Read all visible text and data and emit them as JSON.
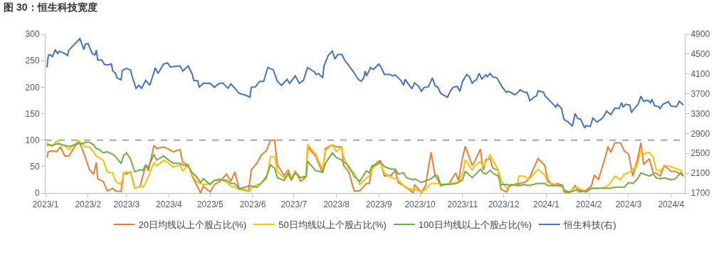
{
  "chart_data": {
    "type": "line",
    "title": "图 30：恒生科技宽度",
    "x": [
      "2023-01-02",
      "2023-01-03",
      "2023-01-06",
      "2023-01-09",
      "2023-01-12",
      "2023-01-15",
      "2023-01-18",
      "2023-01-25",
      "2023-01-28",
      "2023-01-30",
      "2023-02-02",
      "2023-02-05",
      "2023-02-07",
      "2023-02-08",
      "2023-02-12",
      "2023-02-15",
      "2023-02-19",
      "2023-02-21",
      "2023-02-25",
      "2023-02-27",
      "2023-03-01",
      "2023-03-04",
      "2023-03-07",
      "2023-03-11",
      "2023-03-13",
      "2023-03-15",
      "2023-03-17",
      "2023-03-21",
      "2023-03-23",
      "2023-03-28",
      "2023-03-31",
      "2023-04-04",
      "2023-04-09",
      "2023-04-11",
      "2023-04-15",
      "2023-04-18",
      "2023-04-21",
      "2023-04-24",
      "2023-04-26",
      "2023-05-01",
      "2023-05-04",
      "2023-05-08",
      "2023-05-13",
      "2023-05-16",
      "2023-05-19",
      "2023-05-22",
      "2023-05-29",
      "2023-05-31",
      "2023-06-04",
      "2023-06-07",
      "2023-06-11",
      "2023-06-14",
      "2023-06-17",
      "2023-06-19",
      "2023-06-24",
      "2023-06-27",
      "2023-06-29",
      "2023-07-02",
      "2023-07-06",
      "2023-07-10",
      "2023-07-11",
      "2023-07-17",
      "2023-07-22",
      "2023-07-24",
      "2023-07-29",
      "2023-08-01",
      "2023-08-05",
      "2023-08-06",
      "2023-08-10",
      "2023-08-14",
      "2023-08-18",
      "2023-08-23",
      "2023-08-25",
      "2023-08-27",
      "2023-08-31",
      "2023-09-02",
      "2023-09-05",
      "2023-09-10",
      "2023-09-13",
      "2023-09-15",
      "2023-09-19",
      "2023-09-21",
      "2023-09-26",
      "2023-09-27",
      "2023-10-02",
      "2023-10-05",
      "2023-10-09",
      "2023-10-12",
      "2023-10-14",
      "2023-10-16",
      "2023-10-22",
      "2023-10-27",
      "2023-10-29",
      "2023-11-01",
      "2023-11-03",
      "2023-11-08",
      "2023-11-10",
      "2023-11-14",
      "2023-11-16",
      "2023-11-18",
      "2023-11-21",
      "2023-11-23",
      "2023-11-27",
      "2023-11-29",
      "2023-12-03",
      "2023-12-06",
      "2023-12-11",
      "2023-12-12",
      "2023-12-16",
      "2023-12-19",
      "2023-12-26",
      "2023-12-31",
      "2024-01-02",
      "2024-01-06",
      "2024-01-09",
      "2024-01-13",
      "2024-01-14",
      "2024-01-18",
      "2024-01-22",
      "2024-01-25",
      "2024-01-30",
      "2024-02-03",
      "2024-02-05",
      "2024-02-08",
      "2024-02-13",
      "2024-02-15",
      "2024-02-17",
      "2024-02-20",
      "2024-02-24",
      "2024-02-27",
      "2024-03-01",
      "2024-03-04",
      "2024-03-07",
      "2024-03-10",
      "2024-03-12",
      "2024-03-16",
      "2024-03-19",
      "2024-03-21",
      "2024-03-24",
      "2024-03-27",
      "2024-04-01",
      "2024-04-04",
      "2024-04-08",
      "2024-04-10"
    ],
    "series": [
      {
        "name": "20日均线以上个股占比(%)",
        "color": "#ed7d31",
        "values": [
          67,
          78,
          80,
          78,
          87,
          70,
          70,
          99,
          82,
          67,
          44,
          36,
          58,
          27,
          22,
          4,
          9,
          4,
          3,
          38,
          36,
          40,
          9,
          13,
          33,
          53,
          42,
          90,
          84,
          87,
          84,
          78,
          82,
          58,
          53,
          31,
          16,
          0,
          13,
          2,
          16,
          22,
          36,
          22,
          40,
          9,
          4,
          44,
          56,
          71,
          80,
          100,
          100,
          53,
          33,
          44,
          27,
          42,
          22,
          31,
          87,
          69,
          38,
          84,
          91,
          87,
          87,
          53,
          40,
          4,
          4,
          18,
          18,
          47,
          59,
          61,
          32,
          34,
          43,
          20,
          14,
          11,
          0,
          16,
          1,
          14,
          77,
          32,
          25,
          14,
          18,
          38,
          23,
          68,
          88,
          52,
          61,
          83,
          43,
          63,
          65,
          47,
          43,
          7,
          2,
          16,
          14,
          18,
          20,
          25,
          65,
          52,
          25,
          14,
          18,
          14,
          2,
          0,
          14,
          2,
          5,
          14,
          34,
          25,
          68,
          88,
          77,
          95,
          95,
          79,
          74,
          32,
          59,
          95,
          54,
          65,
          38,
          38,
          32,
          52,
          41,
          41,
          36,
          32
        ]
      },
      {
        "name": "50日均线以上个股占比(%)",
        "color": "#ffc000",
        "values": [
          96,
          91,
          88,
          99,
          92,
          89,
          82,
          99,
          93,
          87,
          87,
          78,
          69,
          69,
          62,
          40,
          38,
          22,
          16,
          38,
          40,
          39,
          9,
          13,
          11,
          20,
          31,
          58,
          51,
          62,
          58,
          49,
          53,
          42,
          53,
          33,
          22,
          18,
          16,
          18,
          24,
          27,
          20,
          13,
          11,
          7,
          3,
          9,
          16,
          18,
          27,
          69,
          69,
          40,
          29,
          33,
          29,
          40,
          29,
          33,
          92,
          73,
          44,
          80,
          91,
          78,
          87,
          69,
          47,
          38,
          16,
          29,
          32,
          45,
          56,
          56,
          38,
          29,
          27,
          25,
          14,
          9,
          7,
          7,
          2,
          7,
          18,
          18,
          18,
          16,
          18,
          20,
          20,
          36,
          63,
          43,
          52,
          59,
          50,
          59,
          72,
          63,
          43,
          25,
          9,
          14,
          16,
          32,
          32,
          25,
          45,
          34,
          20,
          18,
          14,
          11,
          5,
          2,
          11,
          9,
          2,
          9,
          9,
          9,
          11,
          14,
          20,
          32,
          25,
          36,
          38,
          45,
          50,
          81,
          74,
          77,
          68,
          45,
          41,
          52,
          50,
          47,
          43,
          32
        ]
      },
      {
        "name": "100日均线以上个股占比(%)",
        "color": "#70ad47",
        "values": [
          89,
          92,
          90,
          93,
          92,
          90,
          88,
          93,
          93,
          96,
          96,
          91,
          84,
          84,
          76,
          78,
          73,
          69,
          56,
          71,
          76,
          64,
          40,
          44,
          43,
          53,
          49,
          73,
          62,
          70,
          64,
          56,
          56,
          53,
          51,
          38,
          31,
          20,
          27,
          16,
          24,
          25,
          24,
          18,
          18,
          8,
          13,
          13,
          11,
          18,
          31,
          53,
          47,
          29,
          24,
          38,
          24,
          38,
          29,
          31,
          60,
          42,
          40,
          56,
          76,
          67,
          62,
          60,
          51,
          31,
          22,
          42,
          38,
          52,
          54,
          59,
          50,
          45,
          45,
          36,
          38,
          29,
          25,
          27,
          20,
          23,
          27,
          34,
          32,
          16,
          16,
          18,
          20,
          25,
          41,
          29,
          34,
          45,
          38,
          36,
          43,
          38,
          32,
          16,
          16,
          14,
          18,
          14,
          16,
          14,
          18,
          18,
          14,
          14,
          14,
          14,
          5,
          2,
          5,
          5,
          2,
          9,
          9,
          9,
          9,
          9,
          9,
          11,
          11,
          11,
          20,
          18,
          25,
          38,
          36,
          32,
          36,
          29,
          27,
          29,
          25,
          27,
          38,
          32
        ]
      },
      {
        "name": "恒生科技(右)",
        "color": "#4472c4",
        "axis": "y2",
        "x": [
          "2023-01-02",
          "2023-01-03",
          "2023-01-04",
          "2023-01-06",
          "2023-01-08",
          "2023-01-10",
          "2023-01-11",
          "2023-01-15",
          "2023-01-17",
          "2023-01-18",
          "2023-01-26",
          "2023-01-29",
          "2023-01-30",
          "2023-02-01",
          "2023-02-04",
          "2023-02-06",
          "2023-02-07",
          "2023-02-08",
          "2023-02-11",
          "2023-02-13",
          "2023-02-15",
          "2023-02-18",
          "2023-02-19",
          "2023-02-21",
          "2023-02-22",
          "2023-02-25",
          "2023-02-26",
          "2023-03-01",
          "2023-03-04",
          "2023-03-05",
          "2023-03-08",
          "2023-03-10",
          "2023-03-12",
          "2023-03-15",
          "2023-03-18",
          "2023-03-22",
          "2023-03-24",
          "2023-03-28",
          "2023-03-31",
          "2023-04-02",
          "2023-04-09",
          "2023-04-11",
          "2023-04-15",
          "2023-04-18",
          "2023-04-19",
          "2023-04-22",
          "2023-04-23",
          "2023-04-26",
          "2023-05-01",
          "2023-05-04",
          "2023-05-07",
          "2023-05-10",
          "2023-05-14",
          "2023-05-16",
          "2023-05-19",
          "2023-05-22",
          "2023-05-27",
          "2023-05-30",
          "2023-05-31",
          "2023-06-03",
          "2023-06-06",
          "2023-06-09",
          "2023-06-12",
          "2023-06-16",
          "2023-06-19",
          "2023-06-22",
          "2023-06-26",
          "2023-06-28",
          "2023-07-02",
          "2023-07-05",
          "2023-07-08",
          "2023-07-11",
          "2023-07-16",
          "2023-07-17",
          "2023-07-19",
          "2023-07-22",
          "2023-07-23",
          "2023-07-26",
          "2023-07-29",
          "2023-07-31",
          "2023-08-02",
          "2023-08-05",
          "2023-08-07",
          "2023-08-10",
          "2023-08-13",
          "2023-08-17",
          "2023-08-19",
          "2023-08-21",
          "2023-08-22",
          "2023-08-23",
          "2023-08-26",
          "2023-08-28",
          "2023-09-01",
          "2023-09-03",
          "2023-09-05",
          "2023-09-09",
          "2023-09-11",
          "2023-09-13",
          "2023-09-17",
          "2023-09-19",
          "2023-09-20",
          "2023-09-24",
          "2023-09-25",
          "2023-09-27",
          "2023-09-30",
          "2023-10-02",
          "2023-10-04",
          "2023-10-07",
          "2023-10-10",
          "2023-10-12",
          "2023-10-14",
          "2023-10-16",
          "2023-10-21",
          "2023-10-23",
          "2023-10-25",
          "2023-10-28",
          "2023-10-30",
          "2023-11-01",
          "2023-11-04",
          "2023-11-06",
          "2023-11-08",
          "2023-11-10",
          "2023-11-11",
          "2023-11-13",
          "2023-11-15",
          "2023-11-18",
          "2023-11-19",
          "2023-11-21",
          "2023-11-23",
          "2023-11-26",
          "2023-11-30",
          "2023-12-03",
          "2023-12-04",
          "2023-12-06",
          "2023-12-09",
          "2023-12-11",
          "2023-12-13",
          "2023-12-16",
          "2023-12-18",
          "2023-12-20",
          "2023-12-23",
          "2023-12-25",
          "2023-12-26",
          "2023-12-30",
          "2023-12-31",
          "2024-01-05",
          "2024-01-08",
          "2024-01-09",
          "2024-01-12",
          "2024-01-14",
          "2024-01-17",
          "2024-01-20",
          "2024-01-22",
          "2024-01-24",
          "2024-01-26",
          "2024-01-29",
          "2024-01-30",
          "2024-02-02",
          "2024-02-04",
          "2024-02-07",
          "2024-02-11",
          "2024-02-14",
          "2024-02-17",
          "2024-02-20",
          "2024-02-23",
          "2024-02-25",
          "2024-02-26",
          "2024-02-28",
          "2024-03-02",
          "2024-03-03",
          "2024-03-05",
          "2024-03-08",
          "2024-03-10",
          "2024-03-12",
          "2024-03-15",
          "2024-03-17",
          "2024-03-18",
          "2024-03-20",
          "2024-03-23",
          "2024-03-24",
          "2024-03-26",
          "2024-03-30",
          "2024-04-01",
          "2024-04-05",
          "2024-04-07",
          "2024-04-10"
        ],
        "values": [
          4230,
          4470,
          4490,
          4450,
          4580,
          4510,
          4560,
          4510,
          4470,
          4580,
          4810,
          4590,
          4700,
          4710,
          4510,
          4480,
          4580,
          4380,
          4380,
          4290,
          4280,
          4300,
          4160,
          4110,
          4020,
          3980,
          4170,
          4210,
          4180,
          4060,
          3810,
          3870,
          3810,
          3970,
          3870,
          4220,
          4110,
          4300,
          4320,
          4240,
          4260,
          4160,
          4260,
          4090,
          3970,
          3960,
          3830,
          3910,
          3910,
          3830,
          3900,
          3920,
          3810,
          3900,
          3810,
          3710,
          3670,
          3630,
          3830,
          3840,
          3950,
          3950,
          4230,
          4180,
          3950,
          3870,
          3990,
          3910,
          4060,
          3910,
          3970,
          4230,
          4140,
          4090,
          4110,
          4020,
          4260,
          4470,
          4560,
          4400,
          4490,
          4490,
          4380,
          4270,
          4160,
          3990,
          3950,
          4020,
          4160,
          4060,
          4230,
          4190,
          4300,
          4210,
          4090,
          4090,
          4060,
          4080,
          3970,
          3870,
          3990,
          3840,
          3800,
          3920,
          3850,
          3750,
          3830,
          3840,
          4020,
          3860,
          3830,
          3710,
          3630,
          3750,
          3830,
          3850,
          3750,
          3950,
          4090,
          4040,
          3910,
          3970,
          3980,
          4110,
          4000,
          4080,
          4040,
          4110,
          4040,
          4020,
          3830,
          3730,
          3750,
          3730,
          3680,
          3720,
          3780,
          3730,
          3730,
          3560,
          3630,
          3660,
          3760,
          3730,
          3660,
          3520,
          3430,
          3490,
          3410,
          3180,
          3130,
          3050,
          3300,
          3200,
          3190,
          3010,
          3060,
          3040,
          3210,
          3130,
          3210,
          3350,
          3280,
          3410,
          3400,
          3520,
          3430,
          3490,
          3470,
          3320,
          3400,
          3490,
          3650,
          3550,
          3570,
          3520,
          3590,
          3460,
          3440,
          3400,
          3490,
          3540,
          3450,
          3440,
          3550,
          3470
        ]
      }
    ],
    "xlim": [
      "2023-01-01",
      "2024-04-11"
    ],
    "xticks": [
      {
        "value": "2023-01-01",
        "label": "2023/1"
      },
      {
        "value": "2023-02-01",
        "label": "2023/2"
      },
      {
        "value": "2023-03-01",
        "label": "2023/3"
      },
      {
        "value": "2023-04-01",
        "label": "2023/4"
      },
      {
        "value": "2023-05-01",
        "label": "2023/5"
      },
      {
        "value": "2023-06-01",
        "label": "2023/6"
      },
      {
        "value": "2023-07-01",
        "label": "2023/7"
      },
      {
        "value": "2023-08-01",
        "label": "2023/8"
      },
      {
        "value": "2023-09-01",
        "label": "2023/9"
      },
      {
        "value": "2023-10-01",
        "label": "2023/10"
      },
      {
        "value": "2023-11-01",
        "label": "2023/11"
      },
      {
        "value": "2023-12-01",
        "label": "2023/12"
      },
      {
        "value": "2024-01-01",
        "label": "2024/1"
      },
      {
        "value": "2024-02-01",
        "label": "2024/2"
      },
      {
        "value": "2024-03-01",
        "label": "2024/3"
      },
      {
        "value": "2024-04-01",
        "label": "2024/4"
      }
    ],
    "ylim": [
      0,
      300
    ],
    "yticks": [
      0,
      50,
      100,
      150,
      200,
      250,
      300
    ],
    "y2lim": [
      1700,
      4900
    ],
    "y2ticks": [
      1700,
      2100,
      2500,
      2900,
      3300,
      3700,
      4100,
      4500,
      4900
    ],
    "ref_lines": [
      {
        "axis": "y",
        "value": 100,
        "color": "#a6a6a6",
        "line_style": "dashed"
      }
    ],
    "legend": "bottom",
    "marker": "none",
    "line_style": "solid"
  }
}
